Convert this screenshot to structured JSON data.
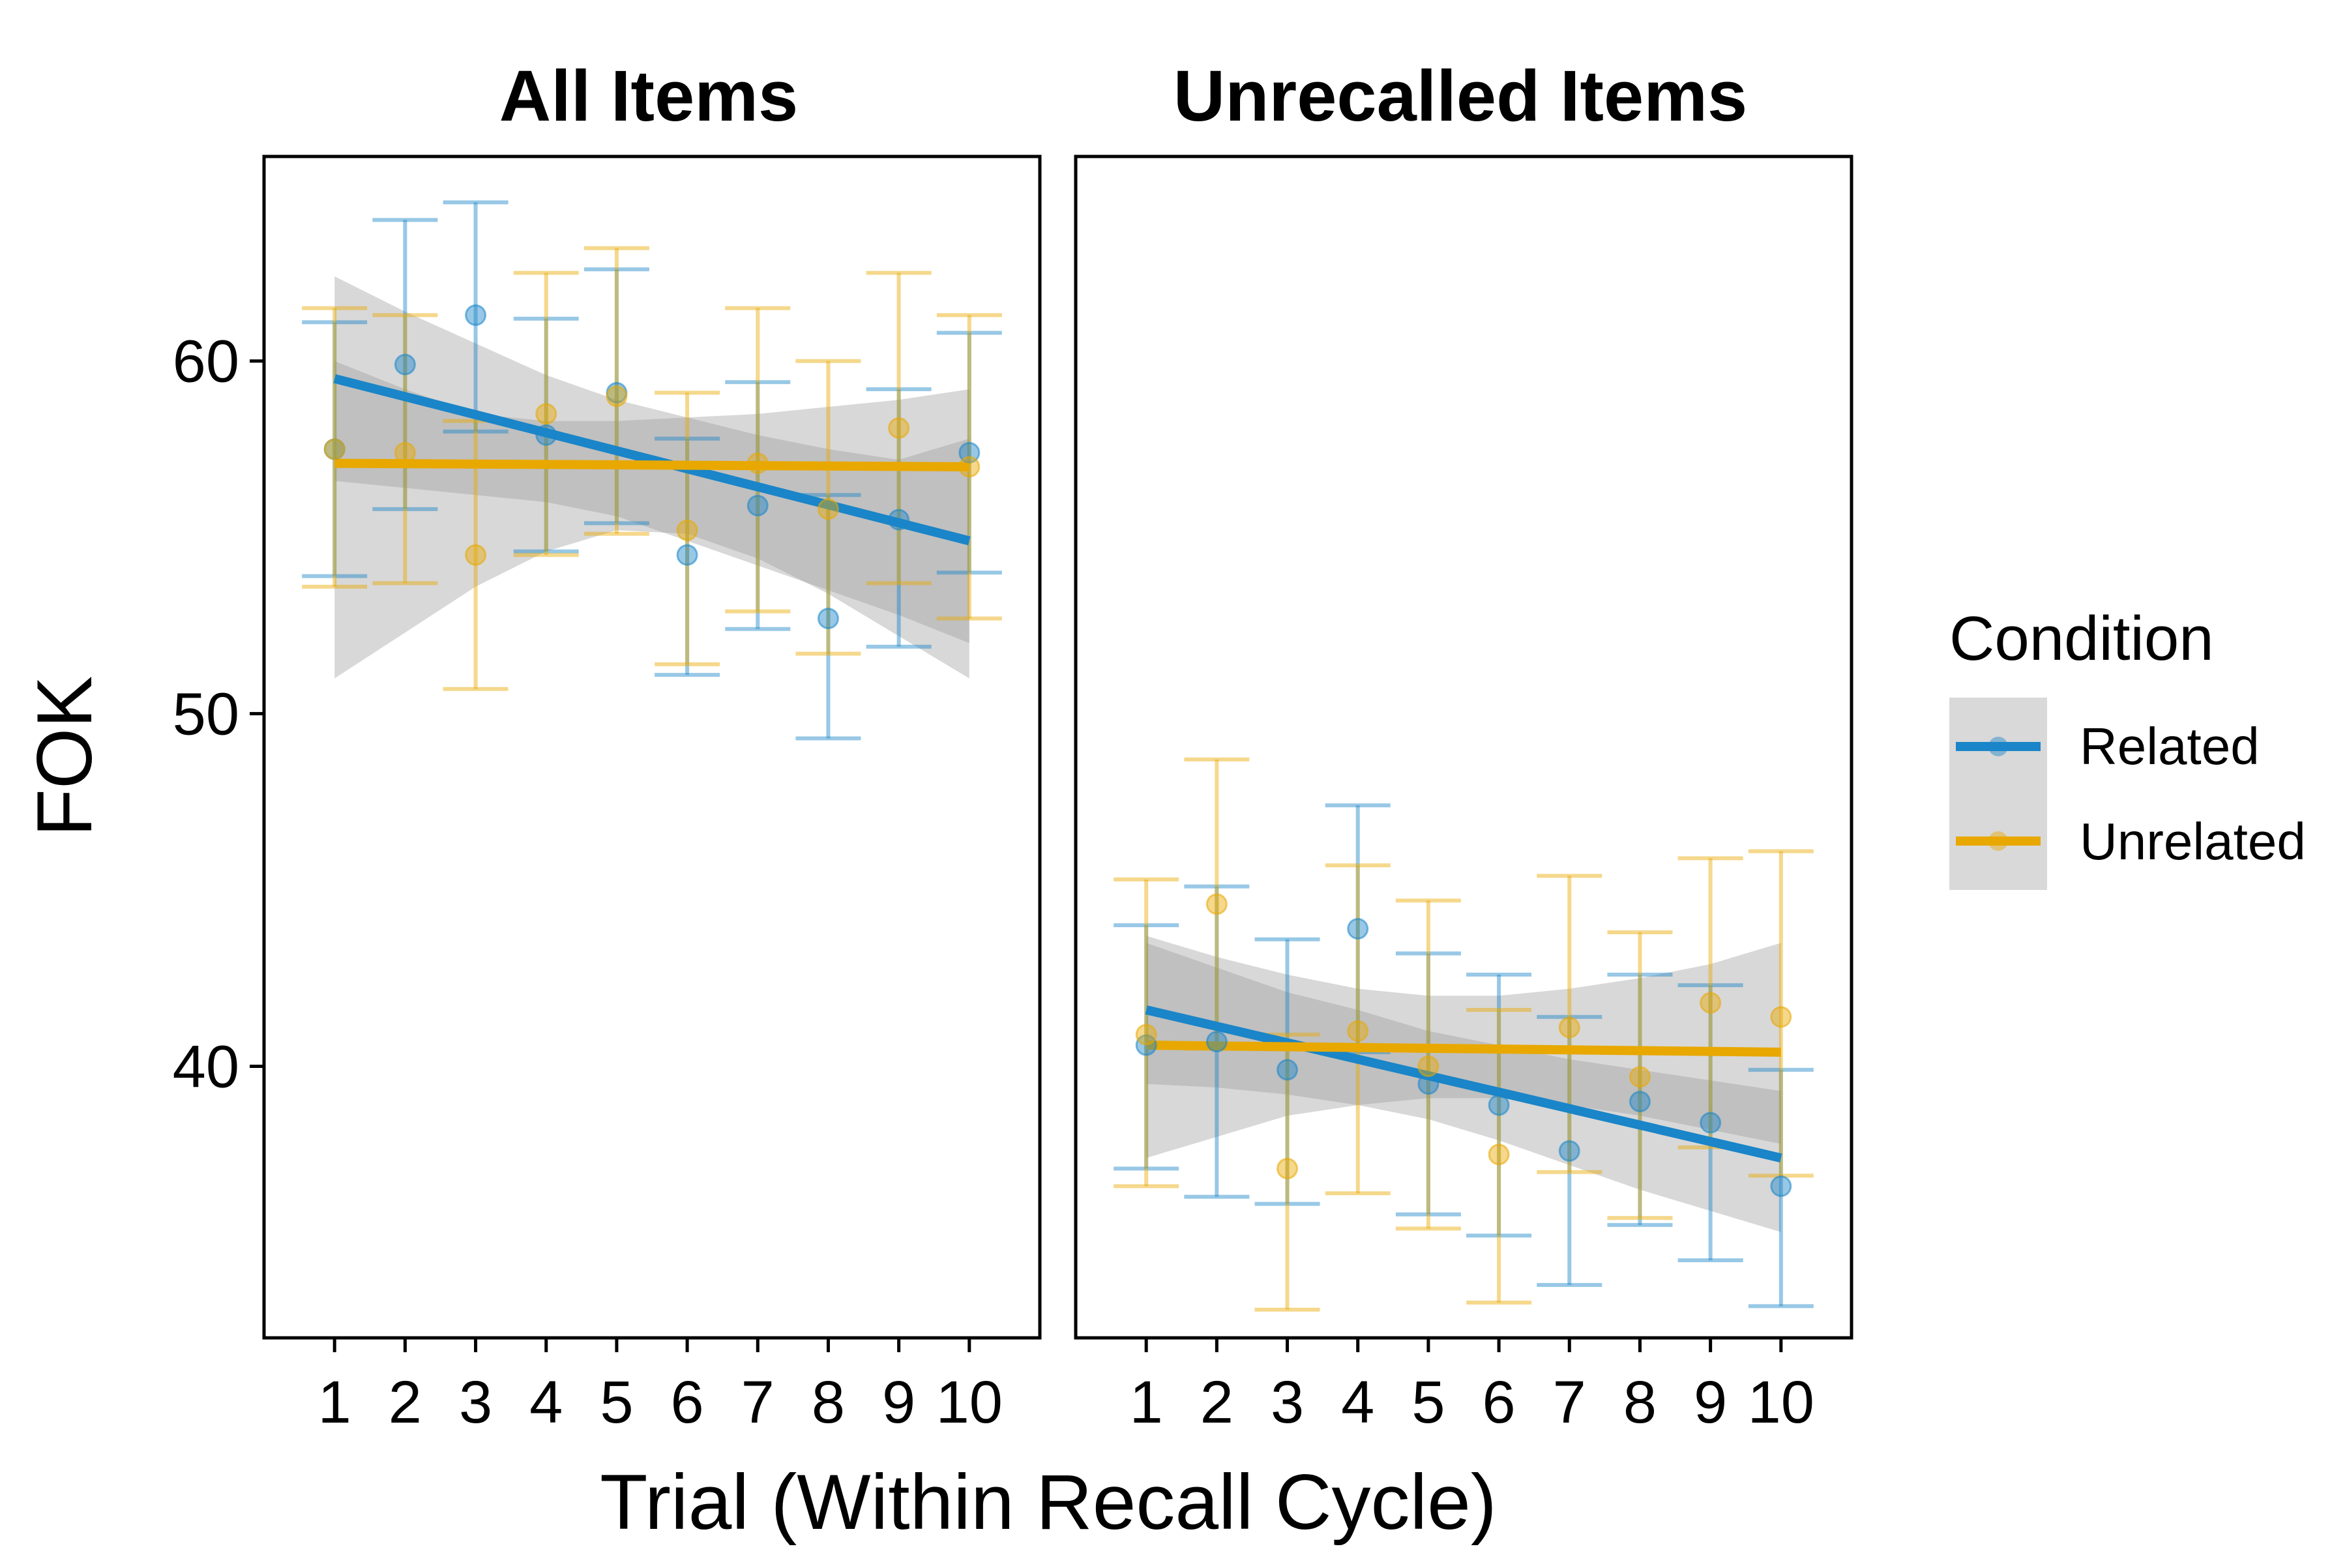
{
  "chart_data": {
    "type": "scatter",
    "xlabel": "Trial (Within Recall Cycle)",
    "ylabel": "FOK",
    "x_ticks": [
      1,
      2,
      3,
      4,
      5,
      6,
      7,
      8,
      9,
      10
    ],
    "y_ticks": [
      40,
      50,
      60
    ],
    "xlim": [
      0,
      11
    ],
    "ylim": [
      32.3,
      65.8
    ],
    "legend": {
      "title": "Condition",
      "placement": "right",
      "entries": [
        "Related",
        "Unrelated"
      ]
    },
    "colors": {
      "Related": "#1a85c8",
      "Unrelated": "#e8a800",
      "band": "#999999"
    },
    "grid": false,
    "panels": [
      {
        "title": "All Items",
        "series": [
          {
            "name": "Related",
            "x": [
              1,
              2,
              3,
              4,
              5,
              6,
              7,
              8,
              9,
              10
            ],
            "y": [
              57.5,
              59.9,
              61.3,
              57.9,
              59.1,
              54.5,
              55.9,
              52.7,
              55.5,
              57.4
            ],
            "ci_low": [
              53.9,
              55.8,
              58.0,
              54.6,
              55.4,
              51.1,
              52.4,
              49.3,
              51.9,
              54.0
            ],
            "ci_high": [
              61.1,
              64.0,
              64.5,
              61.2,
              62.6,
              57.8,
              59.4,
              56.2,
              59.2,
              60.8
            ],
            "trend": {
              "x": [
                1,
                10
              ],
              "y": [
                59.5,
                54.9
              ]
            },
            "band": {
              "x": [
                1,
                2,
                3,
                4,
                5,
                6,
                7,
                8,
                9,
                10
              ],
              "low": [
                56.6,
                56.4,
                56.2,
                56.0,
                55.6,
                54.9,
                54.2,
                53.5,
                52.8,
                52.0
              ],
              "high": [
                62.4,
                61.4,
                60.5,
                59.6,
                58.9,
                58.4,
                57.9,
                57.5,
                57.2,
                57.8
              ]
            }
          },
          {
            "name": "Unrelated",
            "x": [
              1,
              2,
              3,
              4,
              5,
              6,
              7,
              8,
              9,
              10
            ],
            "y": [
              57.5,
              57.4,
              54.5,
              58.5,
              59.0,
              55.2,
              57.1,
              55.8,
              58.1,
              57.0
            ],
            "ci_low": [
              53.6,
              53.7,
              50.7,
              54.5,
              55.1,
              51.4,
              52.9,
              51.7,
              53.7,
              52.7
            ],
            "ci_high": [
              61.5,
              61.3,
              58.3,
              62.5,
              63.2,
              59.1,
              61.5,
              60.0,
              62.5,
              61.3
            ],
            "trend": {
              "x": [
                1,
                10
              ],
              "y": [
                57.1,
                57.0
              ]
            },
            "band": {
              "x": [
                1,
                2,
                3,
                4,
                5,
                6,
                7,
                8,
                9,
                10
              ],
              "low": [
                51.0,
                52.3,
                53.6,
                54.6,
                55.2,
                55.1,
                54.4,
                53.4,
                52.2,
                51.0
              ],
              "high": [
                60.0,
                59.2,
                58.5,
                58.3,
                58.3,
                58.4,
                58.5,
                58.7,
                58.9,
                59.2
              ]
            }
          }
        ]
      },
      {
        "title": "Unrecalled Items",
        "series": [
          {
            "name": "Related",
            "x": [
              1,
              2,
              3,
              4,
              5,
              6,
              7,
              8,
              9,
              10
            ],
            "y": [
              40.6,
              40.7,
              39.9,
              43.9,
              39.5,
              38.9,
              37.6,
              39.0,
              38.4,
              36.6
            ],
            "ci_low": [
              37.1,
              36.3,
              36.1,
              40.4,
              35.8,
              35.2,
              33.8,
              35.5,
              34.5,
              33.2
            ],
            "ci_high": [
              44.0,
              45.1,
              43.6,
              47.4,
              43.2,
              42.6,
              41.4,
              42.6,
              42.3,
              39.9
            ],
            "trend": {
              "x": [
                1,
                10
              ],
              "y": [
                41.6,
                37.4
              ]
            },
            "band": {
              "x": [
                1,
                2,
                3,
                4,
                5,
                6,
                7,
                8,
                9,
                10
              ],
              "low": [
                39.5,
                39.4,
                39.2,
                38.9,
                38.5,
                37.9,
                37.2,
                36.5,
                35.9,
                35.3
              ],
              "high": [
                43.5,
                42.8,
                42.1,
                41.6,
                41.0,
                40.6,
                40.2,
                39.9,
                39.6,
                39.3
              ]
            }
          },
          {
            "name": "Unrelated",
            "x": [
              1,
              2,
              3,
              4,
              5,
              6,
              7,
              8,
              9,
              10
            ],
            "y": [
              40.9,
              44.6,
              37.1,
              41.0,
              40.0,
              37.5,
              41.1,
              39.7,
              41.8,
              41.4
            ],
            "ci_low": [
              36.6,
              40.5,
              33.1,
              36.4,
              35.4,
              33.3,
              37.0,
              35.7,
              37.7,
              36.9
            ],
            "ci_high": [
              45.3,
              48.7,
              40.9,
              45.7,
              44.7,
              41.6,
              45.4,
              43.8,
              45.9,
              46.1
            ],
            "trend": {
              "x": [
                1,
                10
              ],
              "y": [
                40.6,
                40.4
              ]
            },
            "band": {
              "x": [
                1,
                2,
                3,
                4,
                5,
                6,
                7,
                8,
                9,
                10
              ],
              "low": [
                37.4,
                38.0,
                38.6,
                38.9,
                39.1,
                39.1,
                38.9,
                38.6,
                38.2,
                37.8
              ],
              "high": [
                43.7,
                43.1,
                42.6,
                42.2,
                42.0,
                42.0,
                42.2,
                42.5,
                42.9,
                43.5
              ]
            }
          }
        ]
      }
    ]
  }
}
